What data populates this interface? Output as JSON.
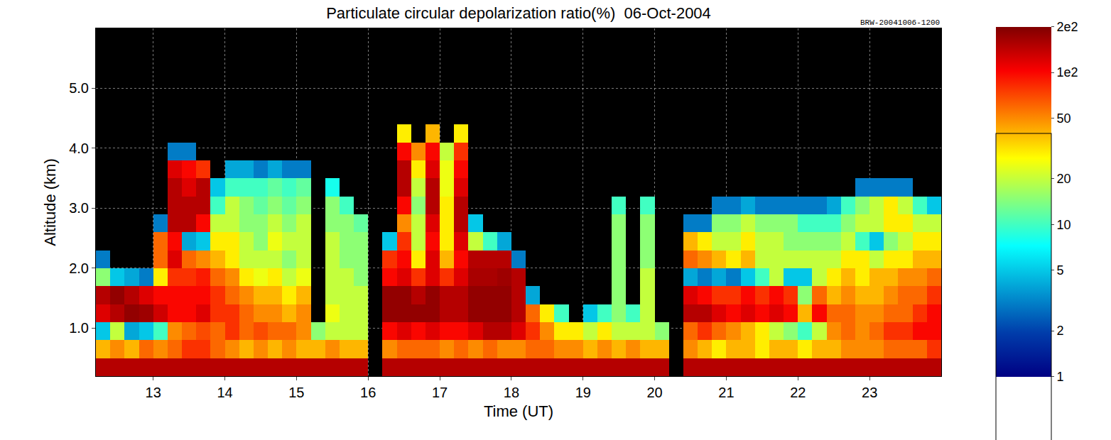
{
  "chart_data": {
    "type": "heatmap",
    "title": "Particulate circular depolarization ratio(%)  06-Oct-2004",
    "annotations": [
      "BRW-20041006-1200"
    ],
    "x_label": "Time (UT)",
    "y_label": "Altitude (km)",
    "xlim": [
      12.2,
      24.0
    ],
    "xticks": [
      13,
      14,
      15,
      16,
      17,
      18,
      19,
      20,
      21,
      22,
      23
    ],
    "ylim": [
      0.2,
      6.0
    ],
    "yticks": [
      {
        "value": 1,
        "label": "1.0"
      },
      {
        "value": 2,
        "label": "2.0"
      },
      {
        "value": 3,
        "label": "3.0"
      },
      {
        "value": 4,
        "label": "4.0"
      },
      {
        "value": 5,
        "label": "5.0"
      }
    ],
    "grid": true,
    "x": [
      12.3,
      12.5,
      12.7,
      12.9,
      13.1,
      13.3,
      13.5,
      13.7,
      13.9,
      14.1,
      14.3,
      14.5,
      14.7,
      14.9,
      15.1,
      15.3,
      15.5,
      15.7,
      15.9,
      16.1,
      16.3,
      16.5,
      16.7,
      16.9,
      17.1,
      17.3,
      17.5,
      17.7,
      17.9,
      18.1,
      18.3,
      18.5,
      18.7,
      18.9,
      19.1,
      19.3,
      19.5,
      19.7,
      19.9,
      20.1,
      20.3,
      20.5,
      20.7,
      20.9,
      21.1,
      21.3,
      21.5,
      21.7,
      21.9,
      22.1,
      22.3,
      22.5,
      22.7,
      22.9,
      23.1,
      23.3,
      23.5,
      23.7,
      23.9
    ],
    "y": [
      0.35,
      0.65,
      0.95,
      1.25,
      1.55,
      1.85,
      2.15,
      2.45,
      2.75,
      3.05,
      3.35,
      3.65,
      3.95,
      4.25
    ],
    "z": [
      [
        150,
        150,
        150,
        150,
        150,
        150,
        150,
        150,
        150,
        150,
        150,
        150,
        150,
        150,
        150,
        150,
        150,
        150,
        150,
        null,
        150,
        150,
        150,
        150,
        150,
        150,
        150,
        150,
        150,
        150,
        150,
        150,
        150,
        150,
        150,
        150,
        150,
        150,
        150,
        150,
        null,
        150,
        150,
        150,
        150,
        150,
        150,
        150,
        150,
        150,
        150,
        150,
        150,
        150,
        150,
        150,
        150,
        150,
        150
      ],
      [
        40,
        50,
        40,
        60,
        50,
        60,
        80,
        80,
        60,
        50,
        40,
        50,
        40,
        50,
        40,
        40,
        50,
        40,
        40,
        null,
        50,
        60,
        60,
        60,
        50,
        60,
        50,
        60,
        50,
        50,
        60,
        60,
        50,
        50,
        40,
        50,
        40,
        50,
        40,
        40,
        null,
        50,
        40,
        30,
        40,
        40,
        30,
        40,
        40,
        30,
        40,
        40,
        50,
        50,
        50,
        60,
        60,
        60,
        80
      ],
      [
        5,
        20,
        4,
        5,
        10,
        50,
        60,
        70,
        60,
        80,
        60,
        70,
        60,
        60,
        50,
        15,
        20,
        20,
        20,
        null,
        100,
        120,
        100,
        120,
        100,
        100,
        120,
        150,
        150,
        120,
        80,
        50,
        30,
        30,
        20,
        30,
        20,
        20,
        20,
        15,
        null,
        60,
        80,
        60,
        50,
        40,
        30,
        20,
        15,
        10,
        20,
        50,
        60,
        50,
        60,
        80,
        80,
        100,
        100
      ],
      [
        120,
        150,
        180,
        170,
        130,
        100,
        100,
        120,
        80,
        80,
        60,
        50,
        50,
        40,
        50,
        null,
        25,
        20,
        20,
        null,
        180,
        180,
        180,
        180,
        150,
        150,
        180,
        180,
        180,
        150,
        60,
        30,
        10,
        null,
        5,
        10,
        15,
        10,
        20,
        null,
        null,
        150,
        150,
        120,
        100,
        120,
        100,
        120,
        100,
        40,
        100,
        60,
        60,
        50,
        50,
        60,
        60,
        80,
        100
      ],
      [
        150,
        180,
        150,
        120,
        100,
        100,
        100,
        100,
        80,
        60,
        50,
        40,
        40,
        30,
        40,
        null,
        20,
        20,
        20,
        null,
        180,
        180,
        150,
        180,
        150,
        150,
        180,
        180,
        180,
        150,
        4,
        null,
        null,
        null,
        null,
        null,
        15,
        null,
        20,
        null,
        null,
        120,
        100,
        80,
        80,
        100,
        80,
        100,
        80,
        15,
        60,
        40,
        50,
        40,
        40,
        50,
        60,
        60,
        80
      ],
      [
        15,
        5,
        4,
        3,
        30,
        80,
        80,
        90,
        60,
        50,
        30,
        25,
        30,
        20,
        25,
        null,
        20,
        20,
        15,
        null,
        100,
        120,
        80,
        120,
        80,
        120,
        160,
        160,
        170,
        150,
        null,
        null,
        null,
        null,
        null,
        null,
        15,
        null,
        20,
        null,
        null,
        4,
        3,
        4,
        3,
        5,
        10,
        20,
        5,
        5,
        20,
        30,
        40,
        30,
        40,
        40,
        50,
        50,
        60
      ],
      [
        3,
        null,
        null,
        null,
        60,
        120,
        60,
        50,
        40,
        30,
        20,
        20,
        20,
        15,
        20,
        null,
        20,
        15,
        15,
        null,
        80,
        100,
        30,
        120,
        40,
        100,
        150,
        150,
        150,
        3,
        null,
        null,
        null,
        null,
        null,
        null,
        15,
        null,
        15,
        null,
        null,
        60,
        50,
        40,
        30,
        40,
        20,
        20,
        20,
        20,
        20,
        20,
        30,
        30,
        20,
        30,
        30,
        40,
        40
      ],
      [
        null,
        null,
        null,
        null,
        60,
        100,
        4,
        5,
        30,
        30,
        20,
        15,
        25,
        20,
        20,
        null,
        20,
        15,
        15,
        null,
        5,
        80,
        20,
        100,
        30,
        120,
        20,
        10,
        4,
        null,
        null,
        null,
        null,
        null,
        null,
        null,
        15,
        null,
        15,
        null,
        null,
        40,
        30,
        20,
        20,
        30,
        20,
        20,
        15,
        15,
        15,
        15,
        20,
        10,
        5,
        15,
        20,
        30,
        30
      ],
      [
        null,
        null,
        null,
        null,
        3,
        150,
        150,
        100,
        20,
        20,
        15,
        15,
        20,
        15,
        20,
        null,
        15,
        15,
        12,
        null,
        null,
        50,
        20,
        120,
        30,
        150,
        5,
        null,
        null,
        null,
        null,
        null,
        null,
        null,
        null,
        null,
        15,
        null,
        15,
        null,
        null,
        3,
        3,
        15,
        15,
        20,
        15,
        15,
        15,
        10,
        10,
        10,
        15,
        20,
        20,
        30,
        30,
        20,
        20
      ],
      [
        null,
        null,
        null,
        null,
        null,
        150,
        150,
        150,
        10,
        20,
        15,
        12,
        15,
        12,
        15,
        null,
        15,
        10,
        null,
        null,
        null,
        100,
        15,
        150,
        30,
        150,
        null,
        null,
        null,
        null,
        null,
        null,
        null,
        null,
        null,
        null,
        10,
        null,
        10,
        null,
        null,
        null,
        null,
        3,
        3,
        4,
        3,
        3,
        3,
        3,
        3,
        4,
        10,
        15,
        20,
        30,
        20,
        10,
        5
      ],
      [
        null,
        null,
        null,
        null,
        null,
        150,
        120,
        150,
        5,
        10,
        10,
        10,
        12,
        10,
        12,
        null,
        8,
        null,
        null,
        null,
        null,
        150,
        20,
        150,
        25,
        120,
        null,
        null,
        null,
        null,
        null,
        null,
        null,
        null,
        null,
        null,
        null,
        null,
        null,
        null,
        null,
        null,
        null,
        null,
        null,
        null,
        null,
        null,
        null,
        null,
        null,
        null,
        null,
        3,
        3,
        3,
        3,
        null,
        null
      ],
      [
        null,
        null,
        null,
        null,
        null,
        120,
        100,
        80,
        null,
        4,
        4,
        3,
        4,
        3,
        3,
        null,
        null,
        null,
        null,
        null,
        null,
        150,
        30,
        120,
        25,
        100,
        null,
        null,
        null,
        null,
        null,
        null,
        null,
        null,
        null,
        null,
        null,
        null,
        null,
        null,
        null,
        null,
        null,
        null,
        null,
        null,
        null,
        null,
        null,
        null,
        null,
        null,
        null,
        null,
        null,
        null,
        null,
        null,
        null
      ],
      [
        null,
        null,
        null,
        null,
        null,
        3,
        3,
        null,
        null,
        null,
        null,
        null,
        null,
        null,
        null,
        null,
        null,
        null,
        null,
        null,
        null,
        100,
        50,
        100,
        20,
        80,
        null,
        null,
        null,
        null,
        null,
        null,
        null,
        null,
        null,
        null,
        null,
        null,
        null,
        null,
        null,
        null,
        null,
        null,
        null,
        null,
        null,
        null,
        null,
        null,
        null,
        null,
        null,
        null,
        null,
        null,
        null,
        null,
        null
      ],
      [
        null,
        null,
        null,
        null,
        null,
        null,
        null,
        null,
        null,
        null,
        null,
        null,
        null,
        null,
        null,
        null,
        null,
        null,
        null,
        null,
        null,
        30,
        null,
        40,
        null,
        30,
        null,
        null,
        null,
        null,
        null,
        null,
        null,
        null,
        null,
        null,
        null,
        null,
        null,
        null,
        null,
        null,
        null,
        null,
        null,
        null,
        null,
        null,
        null,
        null,
        null,
        null,
        null,
        null,
        null,
        null,
        null,
        null,
        null
      ]
    ],
    "colorbar": {
      "title": "%",
      "log": true,
      "range": [
        1,
        200
      ],
      "ticks": [
        1,
        2,
        5,
        10,
        20,
        50,
        {
          "value": 100,
          "label": "1e2"
        },
        {
          "value": 200,
          "label": "2e2"
        }
      ]
    }
  }
}
